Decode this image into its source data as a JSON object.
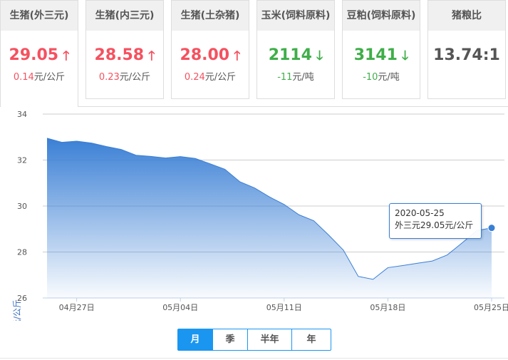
{
  "cards": [
    {
      "title": "生猪(外三元)",
      "value": "29.05",
      "change": "0.14",
      "unit": "元/公斤",
      "trend": "up",
      "arrow": "🡑"
    },
    {
      "title": "生猪(内三元)",
      "value": "28.58",
      "change": "0.23",
      "unit": "元/公斤",
      "trend": "up",
      "arrow": "🡑"
    },
    {
      "title": "生猪(土杂猪)",
      "value": "28.00",
      "change": "0.24",
      "unit": "元/公斤",
      "trend": "up",
      "arrow": "🡑"
    },
    {
      "title": "玉米(饲料原料)",
      "value": "2114",
      "change": "-11",
      "unit": "元/吨",
      "trend": "down",
      "arrow": "🡓"
    },
    {
      "title": "豆粕(饲料原料)",
      "value": "3141",
      "change": "-10",
      "unit": "元/吨",
      "trend": "down",
      "arrow": "🡓"
    },
    {
      "title": "猪粮比",
      "value": "13.74:1",
      "change": "",
      "unit": "",
      "trend": "neutral",
      "arrow": ""
    }
  ],
  "colors": {
    "up": "#f5515f",
    "down": "#3fae49",
    "accent": "#1a96f0",
    "series": "#3a7fd5"
  },
  "tooltip": {
    "date": "2020-05-25",
    "text": "外三元29.05元/公斤"
  },
  "range_buttons": [
    {
      "label": "月",
      "selected": true
    },
    {
      "label": "季"
    },
    {
      "label": "半年"
    },
    {
      "label": "年"
    }
  ],
  "chart_data": {
    "type": "area",
    "ylabel": "元/公斤",
    "ylim": [
      26,
      34
    ],
    "yticks": [
      "26",
      "28",
      "30",
      "32",
      "34"
    ],
    "xticks": [
      {
        "date": "04-27",
        "label": "04月27日"
      },
      {
        "date": "05-04",
        "label": "05月04日"
      },
      {
        "date": "05-11",
        "label": "05月11日"
      },
      {
        "date": "05-18",
        "label": "05月18日"
      },
      {
        "date": "05-25",
        "label": "05月25日"
      }
    ],
    "grid": true,
    "x": [
      "04-25",
      "04-26",
      "04-27",
      "04-28",
      "04-29",
      "04-30",
      "05-01",
      "05-02",
      "05-03",
      "05-04",
      "05-05",
      "05-06",
      "05-07",
      "05-08",
      "05-09",
      "05-10",
      "05-11",
      "05-12",
      "05-13",
      "05-14",
      "05-15",
      "05-16",
      "05-17",
      "05-18",
      "05-19",
      "05-20",
      "05-21",
      "05-22",
      "05-23",
      "05-24",
      "05-25"
    ],
    "values": [
      32.95,
      32.77,
      32.82,
      32.74,
      32.59,
      32.46,
      32.21,
      32.16,
      32.09,
      32.15,
      32.07,
      31.84,
      31.6,
      31.06,
      30.79,
      30.4,
      30.07,
      29.62,
      29.36,
      28.74,
      28.08,
      26.94,
      26.81,
      27.32,
      27.41,
      27.51,
      27.61,
      27.87,
      28.39,
      28.93,
      29.05
    ]
  }
}
